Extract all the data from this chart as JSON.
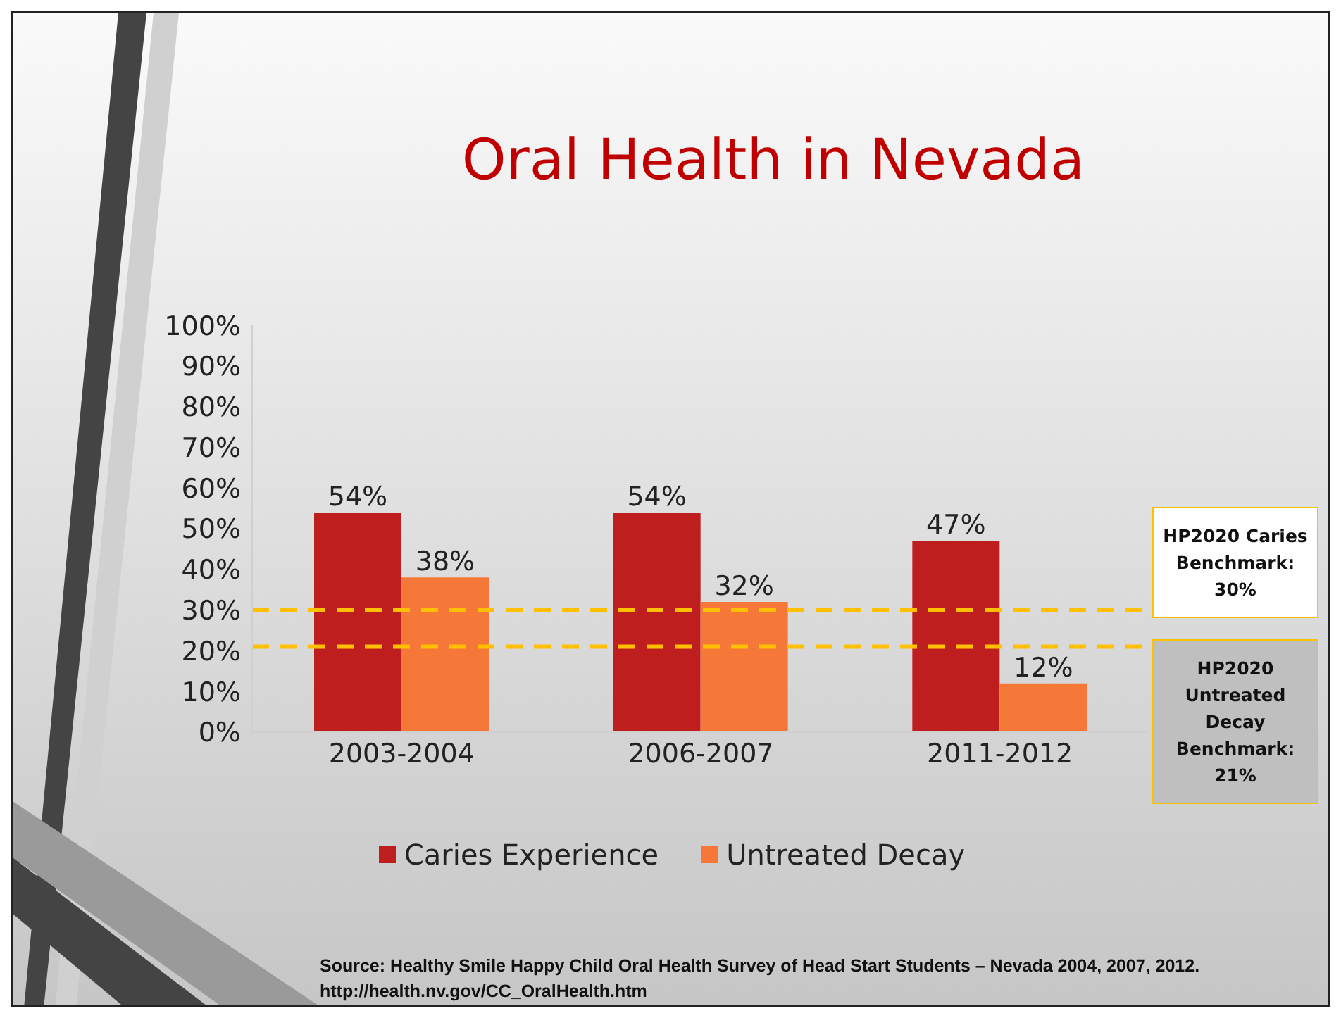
{
  "chart_data": {
    "type": "bar",
    "title": "Oral Health in Nevada",
    "categories": [
      "2003-2004",
      "2006-2007",
      "2011-2012"
    ],
    "series": [
      {
        "name": "Caries Experience",
        "color": "#be1e1e",
        "values": [
          54,
          54,
          47
        ],
        "value_labels": [
          "54%",
          "54%",
          "47%"
        ]
      },
      {
        "name": "Untreated Decay",
        "color": "#f67838",
        "values": [
          38,
          32,
          12
        ],
        "value_labels": [
          "38%",
          "32%",
          "12%"
        ]
      }
    ],
    "ylim": [
      0,
      100
    ],
    "yticks": [
      {
        "value": 0,
        "label": "0%"
      },
      {
        "value": 10,
        "label": "10%"
      },
      {
        "value": 20,
        "label": "20%"
      },
      {
        "value": 30,
        "label": "30%"
      },
      {
        "value": 40,
        "label": "40%"
      },
      {
        "value": 50,
        "label": "50%"
      },
      {
        "value": 60,
        "label": "60%"
      },
      {
        "value": 70,
        "label": "70%"
      },
      {
        "value": 80,
        "label": "80%"
      },
      {
        "value": 90,
        "label": "90%"
      },
      {
        "value": 100,
        "label": "100%"
      }
    ],
    "ref_lines": [
      {
        "axis": "y",
        "value": 30,
        "label": "HP2020 Caries Benchmark: 30%",
        "color": "#ffc000",
        "line_style": "dashed"
      },
      {
        "axis": "y",
        "value": 21,
        "label": "HP2020 Untreated Decay Benchmark: 21%",
        "color": "#ffc000",
        "line_style": "dashed"
      }
    ],
    "legend": "bottom",
    "grid": false,
    "annotations": [
      "Source: Healthy Smile Happy Child Oral Health Survey of Head Start Students – Nevada 2004, 2007, 2012.",
      "http://health.nv.gov/CC_OralHealth.htm"
    ]
  }
}
